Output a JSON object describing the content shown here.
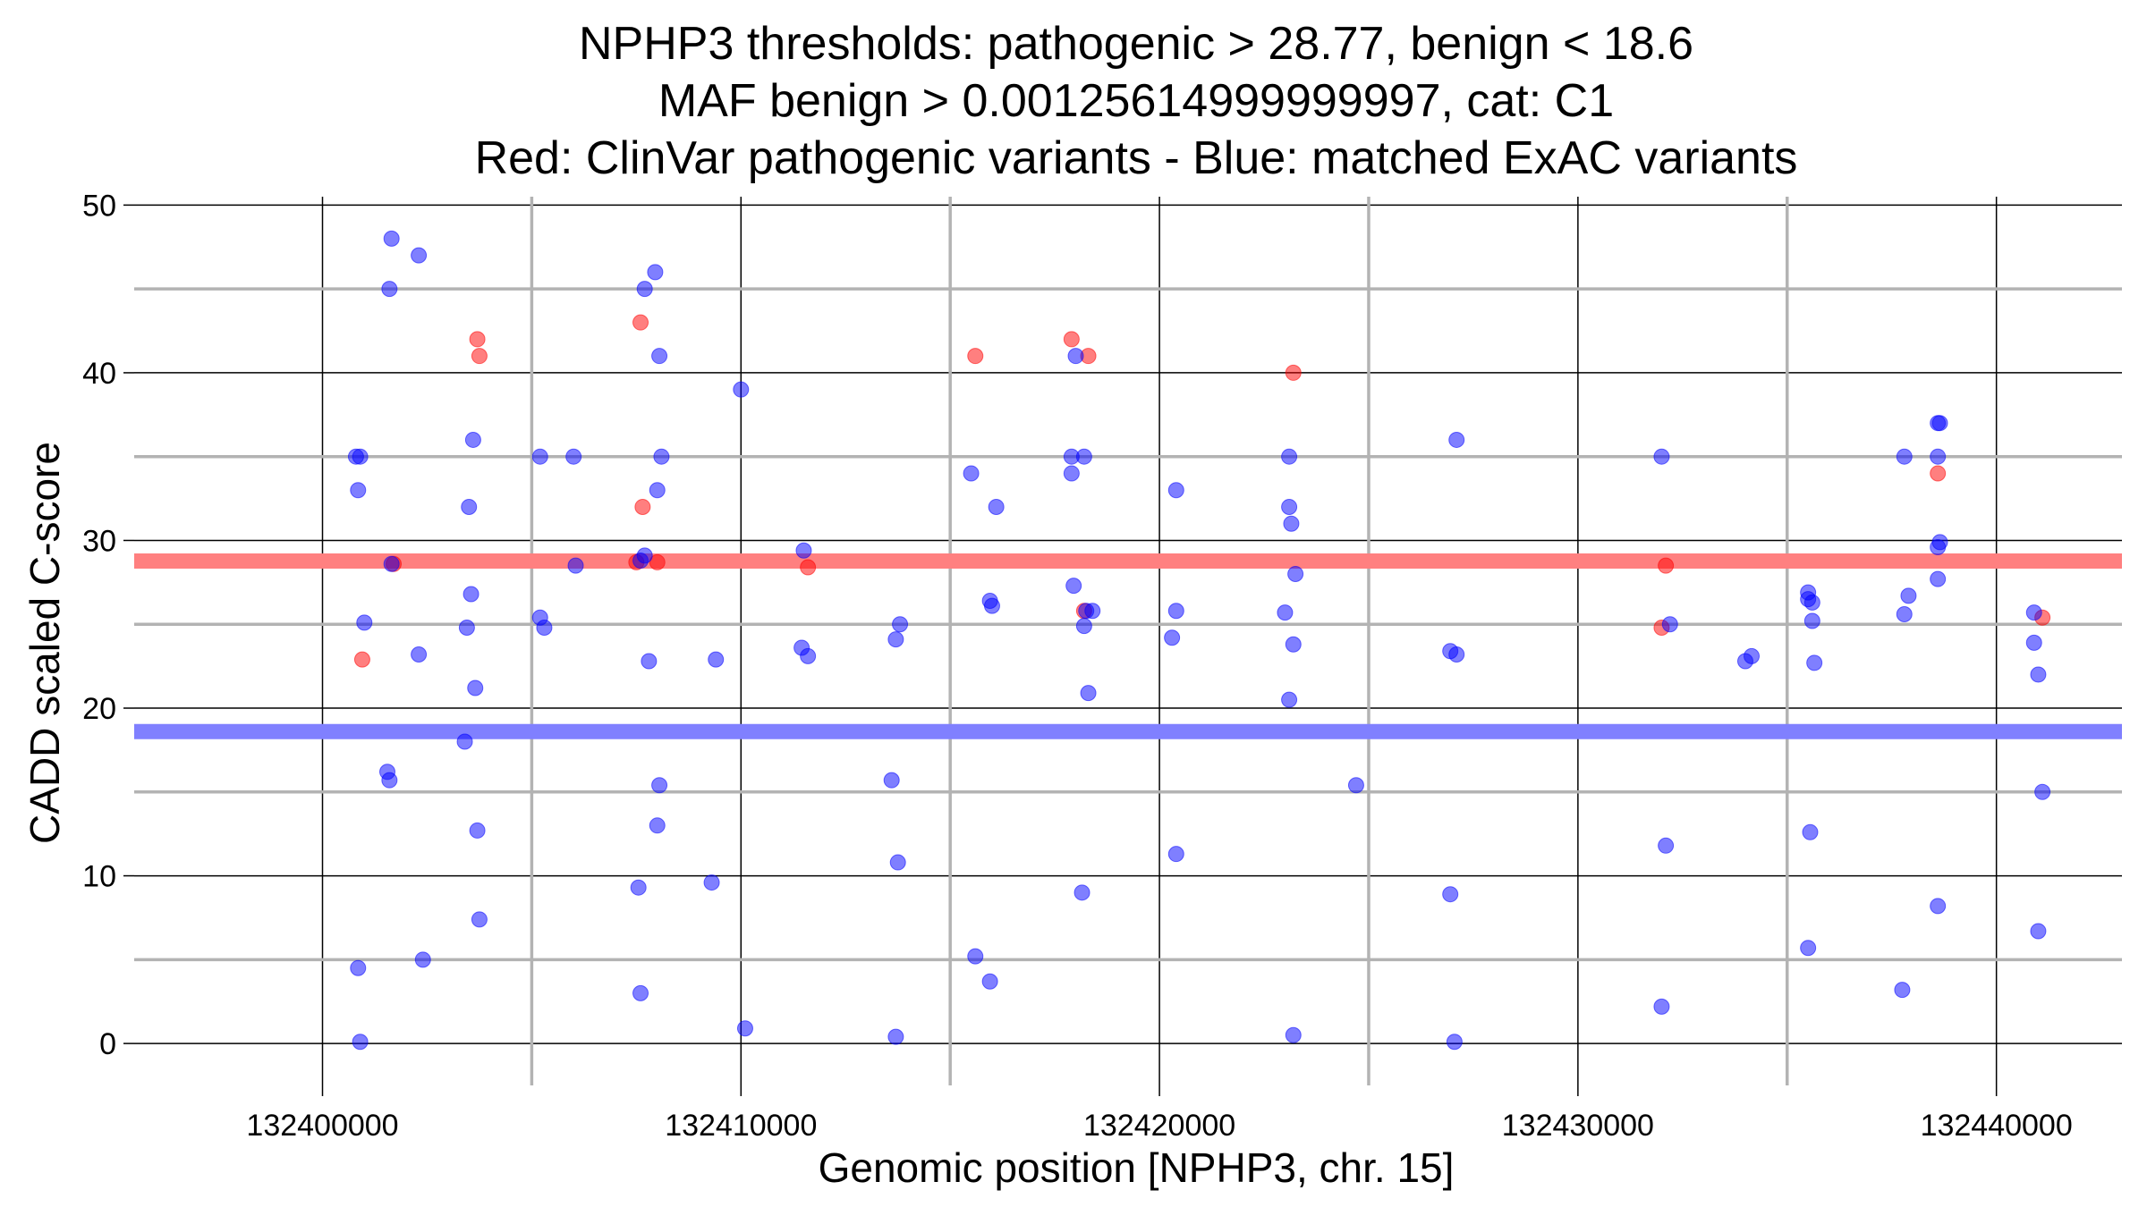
{
  "chart_data": {
    "type": "scatter",
    "title_lines": [
      "NPHP3 thresholds: pathogenic > 28.77, benign < 18.6",
      "MAF benign > 0.00125614999999997, cat: C1",
      "Red: ClinVar pathogenic variants - Blue: matched ExAC variants"
    ],
    "xlabel": "Genomic position [NPHP3, chr. 15]",
    "ylabel": "CADD scaled C-score",
    "xlim": [
      132395500,
      132443000
    ],
    "ylim": [
      -2.5,
      50.5
    ],
    "x_ticks": [
      132400000,
      132410000,
      132420000,
      132430000,
      132440000
    ],
    "x_tick_labels": [
      "132400000",
      "132410000",
      "132420000",
      "132430000",
      "132440000"
    ],
    "x_minor_gridlines": [
      132405000,
      132415000,
      132425000,
      132435000
    ],
    "y_ticks": [
      0,
      10,
      20,
      30,
      40,
      50
    ],
    "y_tick_labels": [
      "0",
      "10",
      "20",
      "30",
      "40",
      "50"
    ],
    "y_minor_gridlines": [
      5,
      15,
      25,
      35,
      45
    ],
    "thresholds": [
      {
        "name": "pathogenic",
        "value": 28.77,
        "color": "#ff8080"
      },
      {
        "name": "benign",
        "value": 18.6,
        "color": "#8080ff"
      }
    ],
    "series": [
      {
        "name": "ClinVar pathogenic variants",
        "color": "#ff0000",
        "points": [
          [
            132400950,
            22.9
          ],
          [
            132401700,
            28.6
          ],
          [
            132403700,
            42
          ],
          [
            132403750,
            41
          ],
          [
            132407600,
            43
          ],
          [
            132407650,
            32
          ],
          [
            132407500,
            28.7
          ],
          [
            132408000,
            28.7
          ],
          [
            132411600,
            28.4
          ],
          [
            132415600,
            41
          ],
          [
            132417900,
            42
          ],
          [
            132418300,
            41
          ],
          [
            132418200,
            25.8
          ],
          [
            132423200,
            40
          ],
          [
            132432000,
            24.8
          ],
          [
            132432100,
            28.5
          ],
          [
            132438600,
            34
          ],
          [
            132441100,
            25.4
          ]
        ]
      },
      {
        "name": "matched ExAC variants",
        "color": "#0000ff",
        "points": [
          [
            132400800,
            35
          ],
          [
            132400900,
            35
          ],
          [
            132400850,
            33
          ],
          [
            132401000,
            25.1
          ],
          [
            132400850,
            4.5
          ],
          [
            132400900,
            0.1
          ],
          [
            132401650,
            48
          ],
          [
            132401600,
            45
          ],
          [
            132401650,
            28.6
          ],
          [
            132401550,
            16.2
          ],
          [
            132401600,
            15.7
          ],
          [
            132402300,
            47
          ],
          [
            132402300,
            23.2
          ],
          [
            132402400,
            5
          ],
          [
            132403600,
            36
          ],
          [
            132403500,
            32
          ],
          [
            132403550,
            26.8
          ],
          [
            132403450,
            24.8
          ],
          [
            132403650,
            21.2
          ],
          [
            132403400,
            18
          ],
          [
            132403700,
            12.7
          ],
          [
            132403750,
            7.4
          ],
          [
            132405200,
            35
          ],
          [
            132405200,
            25.4
          ],
          [
            132405300,
            24.8
          ],
          [
            132406000,
            35
          ],
          [
            132406050,
            28.5
          ],
          [
            132407700,
            45
          ],
          [
            132407950,
            46
          ],
          [
            132408050,
            41
          ],
          [
            132408100,
            35
          ],
          [
            132408000,
            33
          ],
          [
            132407700,
            29.1
          ],
          [
            132407600,
            28.8
          ],
          [
            132407800,
            22.8
          ],
          [
            132408050,
            15.4
          ],
          [
            132408000,
            13
          ],
          [
            132407550,
            9.3
          ],
          [
            132407600,
            3
          ],
          [
            132409400,
            22.9
          ],
          [
            132409300,
            9.6
          ],
          [
            132410000,
            39
          ],
          [
            132410100,
            0.9
          ],
          [
            132411500,
            29.4
          ],
          [
            132411450,
            23.6
          ],
          [
            132411600,
            23.1
          ],
          [
            132413800,
            25
          ],
          [
            132413700,
            24.1
          ],
          [
            132413600,
            15.7
          ],
          [
            132413750,
            10.8
          ],
          [
            132413700,
            0.4
          ],
          [
            132415500,
            34
          ],
          [
            132416100,
            32
          ],
          [
            132415950,
            26.4
          ],
          [
            132416000,
            26.1
          ],
          [
            132415600,
            5.2
          ],
          [
            132415950,
            3.7
          ],
          [
            132418200,
            35
          ],
          [
            132417900,
            35
          ],
          [
            132417900,
            34
          ],
          [
            132418000,
            41
          ],
          [
            132417950,
            27.3
          ],
          [
            132418200,
            24.9
          ],
          [
            132418250,
            25.8
          ],
          [
            132418400,
            25.8
          ],
          [
            132418300,
            20.9
          ],
          [
            132418150,
            9
          ],
          [
            132420400,
            33
          ],
          [
            132420400,
            25.8
          ],
          [
            132420300,
            24.2
          ],
          [
            132420400,
            11.3
          ],
          [
            132423100,
            35
          ],
          [
            132423100,
            32
          ],
          [
            132423150,
            31
          ],
          [
            132423250,
            28
          ],
          [
            132423000,
            25.7
          ],
          [
            132423200,
            23.8
          ],
          [
            132423100,
            20.5
          ],
          [
            132423200,
            0.5
          ],
          [
            132424700,
            15.4
          ],
          [
            132427100,
            36
          ],
          [
            132426950,
            23.4
          ],
          [
            132427100,
            23.2
          ],
          [
            132426950,
            8.9
          ],
          [
            132427050,
            0.1
          ],
          [
            132432000,
            35
          ],
          [
            132432200,
            25
          ],
          [
            132432100,
            11.8
          ],
          [
            132432000,
            2.2
          ],
          [
            132434000,
            22.8
          ],
          [
            132434150,
            23.1
          ],
          [
            132435500,
            26.9
          ],
          [
            132435500,
            26.5
          ],
          [
            132435600,
            26.3
          ],
          [
            132435600,
            25.2
          ],
          [
            132435650,
            22.7
          ],
          [
            132435550,
            12.6
          ],
          [
            132435500,
            5.7
          ],
          [
            132437800,
            35
          ],
          [
            132437900,
            26.7
          ],
          [
            132437800,
            25.6
          ],
          [
            132437750,
            3.2
          ],
          [
            132438600,
            37
          ],
          [
            132438650,
            37
          ],
          [
            132438600,
            35
          ],
          [
            132438650,
            29.9
          ],
          [
            132438600,
            29.6
          ],
          [
            132438600,
            27.7
          ],
          [
            132438600,
            8.2
          ],
          [
            132440900,
            25.7
          ],
          [
            132440900,
            23.9
          ],
          [
            132441000,
            22
          ],
          [
            132441100,
            15
          ],
          [
            132441000,
            6.7
          ]
        ]
      }
    ]
  }
}
